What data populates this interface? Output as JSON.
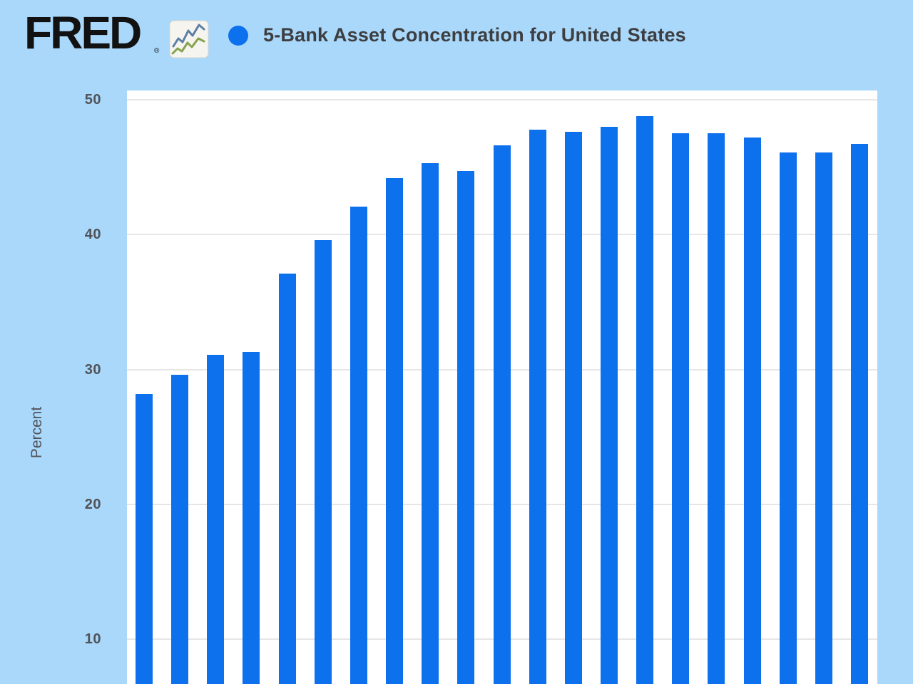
{
  "header": {
    "logo_text": "FRED",
    "registered_mark": "®",
    "logo_icon": "sparkline-chart-icon",
    "series_marker": "blue-dot",
    "title": "5-Bank Asset Concentration for United States"
  },
  "colors": {
    "page_background": "#a9d8fb",
    "plot_background": "#ffffff",
    "bar": "#0d70ec",
    "gridline": "#e6e6e6",
    "tick_text": "#515358",
    "title_text": "#3d3e40"
  },
  "chart_data": {
    "type": "bar",
    "title": "5-Bank Asset Concentration for United States",
    "ylabel": "Percent",
    "xlabel": "",
    "legend_position": "top",
    "grid": "horizontal",
    "y_ticks": [
      50,
      40,
      30,
      20,
      10
    ],
    "y_axis_visible_range": [
      6.5,
      50.7
    ],
    "x_tick_labels_visible": false,
    "num_bars": 21,
    "values": [
      28.2,
      29.6,
      31.1,
      31.3,
      37.1,
      39.6,
      42.1,
      44.2,
      45.3,
      44.7,
      46.6,
      47.8,
      47.6,
      48.0,
      48.8,
      47.5,
      47.5,
      47.2,
      46.1,
      46.1,
      46.7
    ]
  }
}
